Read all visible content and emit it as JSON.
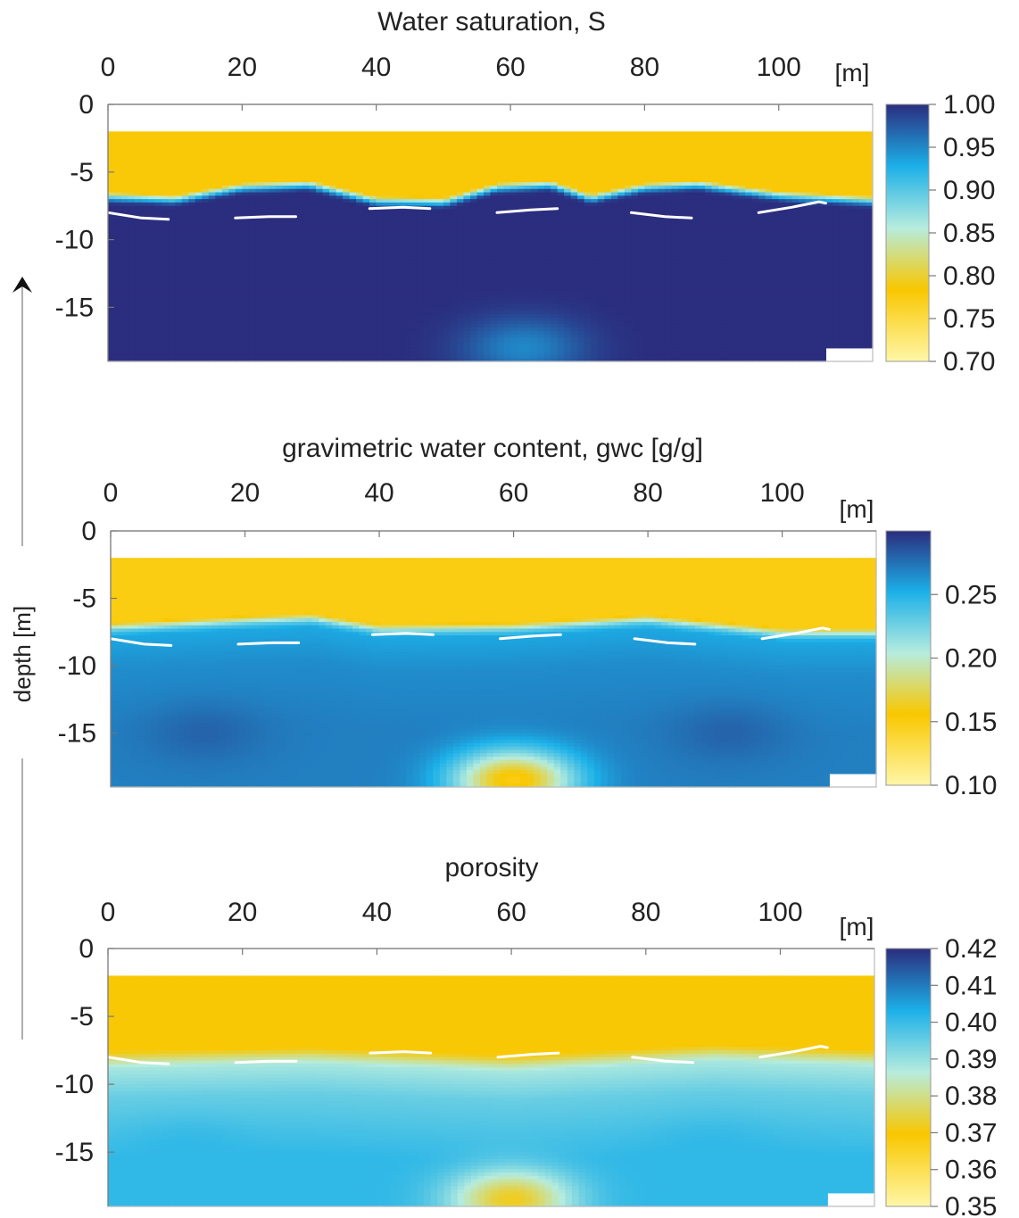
{
  "figure": {
    "ylabel": "depth [m]"
  },
  "chart_data": [
    {
      "type": "heatmap",
      "title": "Water saturation, S",
      "x_unit": "[m]",
      "xlim": [
        0,
        114
      ],
      "ylim": [
        -19,
        0
      ],
      "xticks": [
        0,
        20,
        40,
        60,
        80,
        100
      ],
      "yticks": [
        0,
        -5,
        -10,
        -15
      ],
      "ytick_labels": [
        "0",
        "-5",
        "-10",
        "-15"
      ],
      "colorbar": {
        "min": 0.7,
        "max": 1.0,
        "ticks": [
          1.0,
          0.95,
          0.9,
          0.85,
          0.8,
          0.75,
          0.7
        ],
        "tick_labels": [
          "1.00",
          "0.95",
          "0.90",
          "0.85",
          "0.80",
          "0.75",
          "0.70"
        ]
      },
      "surface_depth": -2,
      "transition_depth": [
        [
          0,
          -6.5
        ],
        [
          10,
          -6.7
        ],
        [
          20,
          -5.8
        ],
        [
          30,
          -5.6
        ],
        [
          40,
          -6.8
        ],
        [
          50,
          -6.9
        ],
        [
          58,
          -5.8
        ],
        [
          66,
          -5.6
        ],
        [
          72,
          -6.6
        ],
        [
          80,
          -5.8
        ],
        [
          88,
          -5.6
        ],
        [
          100,
          -6.4
        ],
        [
          114,
          -6.8
        ]
      ],
      "profile": [
        [
          0,
          0.78
        ],
        [
          0.25,
          0.86
        ],
        [
          0.5,
          0.93
        ],
        [
          0.75,
          0.99
        ],
        [
          1.0,
          1.0
        ],
        [
          6,
          1.0
        ]
      ],
      "local_anomalies": [
        {
          "x": 62,
          "depth": -18,
          "value": 0.95
        }
      ]
    },
    {
      "type": "heatmap",
      "title": "gravimetric water content, gwc [g/g]",
      "x_unit": "[m]",
      "xlim": [
        0,
        114
      ],
      "ylim": [
        -19,
        0
      ],
      "xticks": [
        0,
        20,
        40,
        60,
        80,
        100
      ],
      "yticks": [
        0,
        -5,
        -10,
        -15
      ],
      "ytick_labels": [
        "0",
        "-5",
        "-10",
        "-15"
      ],
      "colorbar": {
        "min": 0.1,
        "max": 0.3,
        "ticks": [
          0.25,
          0.2,
          0.15,
          0.1
        ],
        "tick_labels": [
          "0.25",
          "0.20",
          "0.15",
          "0.10"
        ]
      },
      "surface_depth": -2,
      "transition_depth": [
        [
          0,
          -6.8
        ],
        [
          20,
          -6.3
        ],
        [
          30,
          -6.1
        ],
        [
          40,
          -6.9
        ],
        [
          60,
          -6.8
        ],
        [
          80,
          -6.2
        ],
        [
          100,
          -7.2
        ],
        [
          114,
          -7.2
        ]
      ],
      "profile": [
        [
          0,
          0.15
        ],
        [
          0.3,
          0.19
        ],
        [
          0.6,
          0.23
        ],
        [
          1.0,
          0.255
        ],
        [
          3.5,
          0.265
        ],
        [
          8,
          0.27
        ]
      ],
      "local_anomalies": [
        {
          "x": 14,
          "depth": -15,
          "value": 0.28
        },
        {
          "x": 92,
          "depth": -15,
          "value": 0.28
        },
        {
          "x": 60,
          "depth": -18.5,
          "value": 0.15
        }
      ]
    },
    {
      "type": "heatmap",
      "title": "porosity",
      "x_unit": "[m]",
      "xlim": [
        0,
        114
      ],
      "ylim": [
        -19,
        0
      ],
      "xticks": [
        0,
        20,
        40,
        60,
        80,
        100
      ],
      "yticks": [
        0,
        -5,
        -10,
        -15
      ],
      "ytick_labels": [
        "0",
        "-5",
        "-10",
        "-15"
      ],
      "colorbar": {
        "min": 0.35,
        "max": 0.42,
        "ticks": [
          0.42,
          0.41,
          0.4,
          0.39,
          0.38,
          0.37,
          0.36,
          0.35
        ],
        "tick_labels": [
          "0.42",
          "0.41",
          "0.40",
          "0.39",
          "0.38",
          "0.37",
          "0.36",
          "0.35"
        ]
      },
      "surface_depth": -2,
      "transition_depth": [
        [
          0,
          -7.5
        ],
        [
          30,
          -7.2
        ],
        [
          60,
          -7.8
        ],
        [
          90,
          -7.0
        ],
        [
          114,
          -7.4
        ]
      ],
      "profile": [
        [
          0,
          0.369
        ],
        [
          0.4,
          0.374
        ],
        [
          0.8,
          0.381
        ],
        [
          1.3,
          0.388
        ],
        [
          3.5,
          0.395
        ],
        [
          8,
          0.401
        ]
      ],
      "local_anomalies": [
        {
          "x": 12,
          "depth": -15,
          "value": 0.401
        },
        {
          "x": 90,
          "depth": -15,
          "value": 0.401
        },
        {
          "x": 60,
          "depth": -18.5,
          "value": 0.372
        }
      ]
    }
  ],
  "water_table_segments": [
    [
      [
        0,
        -8.0
      ],
      [
        5,
        -8.4
      ],
      [
        9,
        -8.5
      ]
    ],
    [
      [
        19,
        -8.4
      ],
      [
        24,
        -8.3
      ],
      [
        28,
        -8.3
      ]
    ],
    [
      [
        39,
        -7.7
      ],
      [
        44,
        -7.6
      ],
      [
        48,
        -7.7
      ]
    ],
    [
      [
        58,
        -8.0
      ],
      [
        63,
        -7.8
      ],
      [
        67,
        -7.7
      ]
    ],
    [
      [
        78,
        -8.0
      ],
      [
        83,
        -8.3
      ],
      [
        87,
        -8.4
      ]
    ],
    [
      [
        97,
        -8.0
      ],
      [
        102,
        -7.6
      ],
      [
        106,
        -7.2
      ],
      [
        107,
        -7.3
      ]
    ]
  ]
}
